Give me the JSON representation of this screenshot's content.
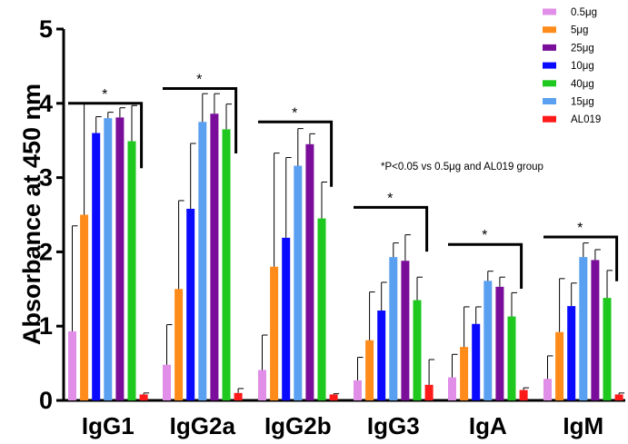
{
  "chart_data": {
    "type": "bar",
    "ylabel": "Absorbance at 450 nm",
    "ylim": [
      0,
      5
    ],
    "yticks": [
      "0",
      "1",
      "2",
      "3",
      "4",
      "5"
    ],
    "categories": [
      "IgG1",
      "IgG2a",
      "IgG2b",
      "IgG3",
      "IgA",
      "IgM"
    ],
    "series": [
      {
        "name": "0.5μg",
        "color": "#e18ee8",
        "values": [
          0.93,
          0.48,
          0.41,
          0.27,
          0.31,
          0.29
        ],
        "errors": [
          1.42,
          0.54,
          0.47,
          0.31,
          0.31,
          0.31
        ]
      },
      {
        "name": "5μg",
        "color": "#ff8c1a",
        "values": [
          2.5,
          1.5,
          1.8,
          0.81,
          0.72,
          0.92
        ],
        "errors": [
          1.5,
          1.19,
          1.53,
          0.65,
          0.54,
          0.72
        ]
      },
      {
        "name": "25μg",
        "color": "#7a0e9a",
        "values": [
          3.81,
          3.86,
          3.45,
          1.88,
          1.53,
          1.89
        ],
        "errors": [
          0.13,
          0.27,
          0.14,
          0.35,
          0.13,
          0.14
        ]
      },
      {
        "name": "10μg",
        "color": "#0a0aff",
        "values": [
          3.6,
          2.58,
          2.19,
          1.21,
          1.03,
          1.27
        ],
        "errors": [
          0.22,
          0.88,
          1.08,
          0.38,
          0.23,
          0.31
        ]
      },
      {
        "name": "40μg",
        "color": "#1ec81e",
        "values": [
          3.49,
          3.65,
          2.45,
          1.35,
          1.13,
          1.38
        ],
        "errors": [
          0.48,
          0.34,
          0.49,
          0.31,
          0.32,
          0.37
        ]
      },
      {
        "name": "15μg",
        "color": "#5aa0f0",
        "values": [
          3.8,
          3.75,
          3.16,
          1.93,
          1.61,
          1.93
        ],
        "errors": [
          0.08,
          0.38,
          0.5,
          0.19,
          0.13,
          0.19
        ]
      },
      {
        "name": "AL019",
        "color": "#ff1a1a",
        "values": [
          0.08,
          0.1,
          0.08,
          0.21,
          0.14,
          0.08
        ],
        "errors": [
          0.02,
          0.06,
          0.01,
          0.34,
          0.03,
          0.02
        ]
      }
    ],
    "bar_order": [
      "0.5μg",
      "5μg",
      "10μg",
      "15μg",
      "25μg",
      "40μg",
      "AL019"
    ],
    "significance": [
      {
        "category": "IgG1",
        "level": 4.0,
        "label": "*"
      },
      {
        "category": "IgG2a",
        "level": 4.2,
        "label": "*"
      },
      {
        "category": "IgG2b",
        "level": 3.75,
        "label": "*"
      },
      {
        "category": "IgG3",
        "level": 2.6,
        "label": "*"
      },
      {
        "category": "IgA",
        "level": 2.1,
        "label": "*"
      },
      {
        "category": "IgM",
        "level": 2.2,
        "label": "*"
      }
    ],
    "annotation": "*P<0.05 vs 0.5μg and AL019 group",
    "legend_position": "top-right"
  }
}
